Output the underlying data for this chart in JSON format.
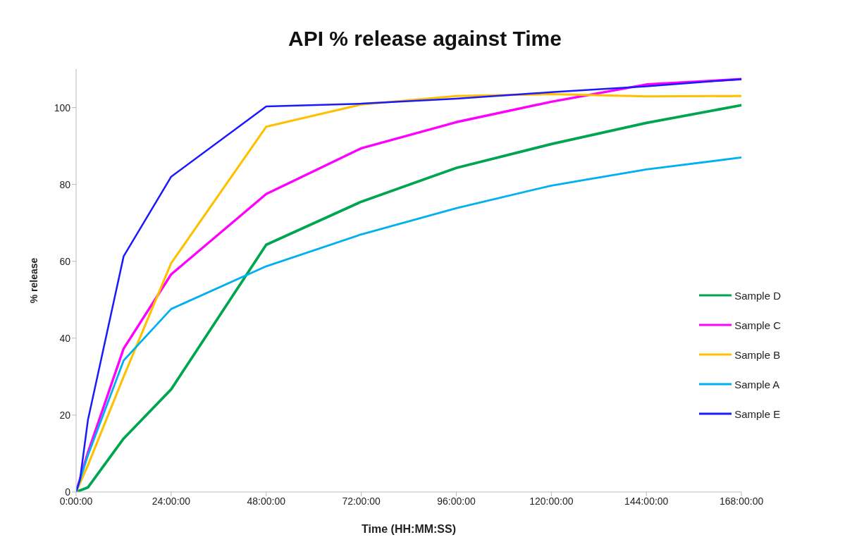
{
  "chart_data": {
    "type": "line",
    "title": "API % release against Time",
    "xlabel": "Time (HH:MM:SS)",
    "ylabel": "% release",
    "x": [
      0,
      3,
      12,
      24,
      48,
      72,
      96,
      120,
      144,
      168
    ],
    "series": [
      {
        "name": "Sample D",
        "color": "#00a550",
        "values": [
          0,
          1.2,
          13.9,
          26.7,
          64.3,
          75.5,
          84.3,
          90.5,
          96,
          100.6
        ]
      },
      {
        "name": "Sample C",
        "color": "#ff00ff",
        "values": [
          0,
          10.3,
          37.3,
          56.6,
          77.5,
          89.4,
          96.2,
          101.5,
          106,
          107.4
        ]
      },
      {
        "name": "Sample B",
        "color": "#ffc000",
        "values": [
          0,
          7,
          30,
          59.5,
          95,
          100.8,
          103,
          103.5,
          102.9,
          103
        ]
      },
      {
        "name": "Sample A",
        "color": "#00b0f0",
        "values": [
          0,
          9.6,
          34.2,
          47.6,
          58.7,
          67,
          73.8,
          79.7,
          83.9,
          87
        ]
      },
      {
        "name": "Sample E",
        "color": "#1a1aff",
        "x": [
          0,
          1,
          3,
          12,
          24,
          48,
          72,
          96,
          120,
          144,
          168
        ],
        "values": [
          0,
          3.3,
          18.8,
          61.3,
          82,
          100.3,
          101,
          102.3,
          104,
          105.5,
          107.4
        ]
      }
    ],
    "xlim": [
      0,
      168
    ],
    "xticks": [
      {
        "value": 0,
        "label": "0:00:00"
      },
      {
        "value": 24,
        "label": "24:00:00"
      },
      {
        "value": 48,
        "label": "48:00:00"
      },
      {
        "value": 72,
        "label": "72:00:00"
      },
      {
        "value": 96,
        "label": "96:00:00"
      },
      {
        "value": 120,
        "label": "120:00:00"
      },
      {
        "value": 144,
        "label": "144:00:00"
      },
      {
        "value": 168,
        "label": "168:00:00"
      }
    ],
    "ylim": [
      0,
      110
    ],
    "yticks": [
      0,
      20,
      40,
      60,
      80,
      100
    ],
    "grid": false,
    "legend": "right",
    "marker": "none",
    "line_style": "solid"
  }
}
